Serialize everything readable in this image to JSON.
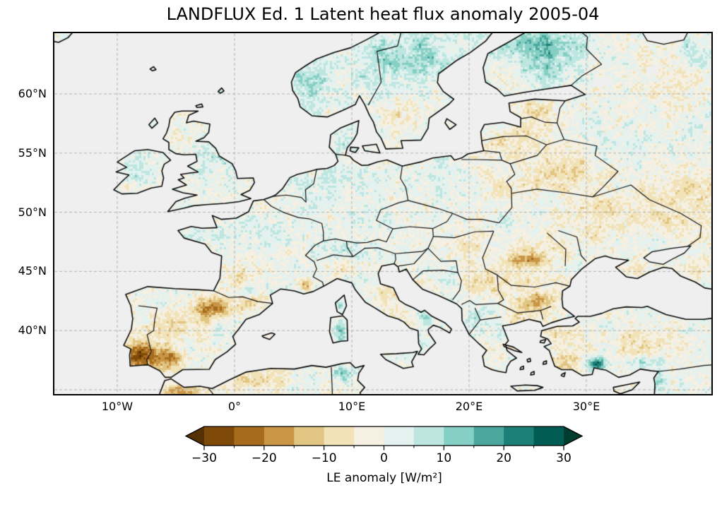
{
  "figure": {
    "title": "LANDFLUX Ed. 1 Latent heat flux anomaly 2005-04",
    "background_color": "#ffffff"
  },
  "map": {
    "ocean_color": "#efefef",
    "coastline_color": "#0a0a0a",
    "border_color": "#111111",
    "gridline_color": "#b3b3b3",
    "spine_color": "#000000"
  },
  "chart_data": {
    "type": "heatmap",
    "subtype": "geographic-anomaly-map",
    "title": "LANDFLUX Ed. 1 Latent heat flux anomaly 2005-04",
    "projection": "PlateCarree",
    "extent": {
      "lon_min": -15.4,
      "lon_max": 40.7,
      "lat_min": 34.6,
      "lat_max": 65.1
    },
    "grid": {
      "on": true,
      "style": "dashed",
      "lon_lines": [
        -10,
        0,
        10,
        20,
        30
      ],
      "lat_lines": [
        35,
        40,
        45,
        50,
        55,
        60
      ]
    },
    "xticks": [
      {
        "label": "10°W",
        "lon": -10
      },
      {
        "label": "0°",
        "lon": 0
      },
      {
        "label": "10°E",
        "lon": 10
      },
      {
        "label": "20°E",
        "lon": 20
      },
      {
        "label": "30°E",
        "lon": 30
      }
    ],
    "yticks": [
      {
        "label": "60°N",
        "lat": 60
      },
      {
        "label": "55°N",
        "lat": 55
      },
      {
        "label": "50°N",
        "lat": 50
      },
      {
        "label": "45°N",
        "lat": 45
      },
      {
        "label": "40°N",
        "lat": 40
      }
    ],
    "colorbar": {
      "label": "LE anomaly [W/m²]",
      "orientation": "horizontal",
      "extend": "both",
      "level_min": -30,
      "level_max": 30,
      "level_step": 5,
      "ticks": [
        -30,
        -20,
        -10,
        0,
        10,
        20,
        30
      ],
      "tick_labels": [
        "−30",
        "−20",
        "−10",
        "0",
        "10",
        "20",
        "30"
      ],
      "under_color": "#543005",
      "over_color": "#003c30",
      "colors": [
        "#7f4909",
        "#a76b1d",
        "#c99546",
        "#e1c582",
        "#f2e2b8",
        "#f5f0e2",
        "#e3f1ef",
        "#bce6df",
        "#85cfc4",
        "#4ca89e",
        "#1d8078",
        "#015c53"
      ]
    },
    "anomaly_centers": [
      {
        "region": "sw-iberia",
        "lon": -8.0,
        "lat": 37.9,
        "value": -26,
        "sx": 1.8,
        "sy": 1.1
      },
      {
        "region": "s-spain",
        "lon": -5.6,
        "lat": 37.6,
        "value": -16,
        "sx": 1.3,
        "sy": 0.9
      },
      {
        "region": "c-iberia",
        "lon": -5.0,
        "lat": 40.5,
        "value": -9,
        "sx": 2.2,
        "sy": 1.4
      },
      {
        "region": "ne-spain-ebro",
        "lon": -1.8,
        "lat": 41.9,
        "value": -20,
        "sx": 1.7,
        "sy": 0.9
      },
      {
        "region": "e-pyrenees",
        "lon": 1.2,
        "lat": 42.4,
        "value": -14,
        "sx": 0.9,
        "sy": 0.5
      },
      {
        "region": "provence",
        "lon": 6.1,
        "lat": 43.9,
        "value": -18,
        "sx": 0.6,
        "sy": 0.45
      },
      {
        "region": "n-morocco",
        "lon": -4.5,
        "lat": 34.8,
        "value": -14,
        "sx": 1.8,
        "sy": 0.9
      },
      {
        "region": "algeria",
        "lon": 1.5,
        "lat": 35.8,
        "value": -8,
        "sx": 2.5,
        "sy": 0.9
      },
      {
        "region": "tunisia",
        "lon": 9.3,
        "lat": 36.4,
        "value": 14,
        "sx": 0.9,
        "sy": 0.6
      },
      {
        "region": "sw-france",
        "lon": 0.3,
        "lat": 44.6,
        "value": -6,
        "sx": 1.6,
        "sy": 1.2
      },
      {
        "region": "n-france",
        "lon": 2.3,
        "lat": 48.0,
        "value": 4,
        "sx": 2.4,
        "sy": 1.6
      },
      {
        "region": "brittany",
        "lon": -3.0,
        "lat": 48.2,
        "value": 4,
        "sx": 1.0,
        "sy": 0.7
      },
      {
        "region": "britain",
        "lon": -1.8,
        "lat": 53.6,
        "value": 4,
        "sx": 2.4,
        "sy": 2.2
      },
      {
        "region": "ireland",
        "lon": -8.0,
        "lat": 53.3,
        "value": 4,
        "sx": 1.6,
        "sy": 1.3
      },
      {
        "region": "nw-germany",
        "lon": 8.0,
        "lat": 52.3,
        "value": 5,
        "sx": 1.7,
        "sy": 1.3
      },
      {
        "region": "germany",
        "lon": 10.5,
        "lat": 50.0,
        "value": 2,
        "sx": 2.2,
        "sy": 1.8
      },
      {
        "region": "alps",
        "lon": 9.5,
        "lat": 46.8,
        "value": 4,
        "sx": 2.0,
        "sy": 0.8
      },
      {
        "region": "netherlands",
        "lon": 5.5,
        "lat": 52.3,
        "value": 5,
        "sx": 1.0,
        "sy": 0.8
      },
      {
        "region": "denmark",
        "lon": 9.3,
        "lat": 55.9,
        "value": 3,
        "sx": 1.4,
        "sy": 0.9
      },
      {
        "region": "w-norway",
        "lon": 6.5,
        "lat": 61.0,
        "value": 9,
        "sx": 1.8,
        "sy": 2.2
      },
      {
        "region": "scandinavia",
        "lon": 15.0,
        "lat": 63.0,
        "value": 10,
        "sx": 4.5,
        "sy": 2.2
      },
      {
        "region": "n-finland",
        "lon": 26.0,
        "lat": 64.5,
        "value": 10,
        "sx": 4.0,
        "sy": 1.5
      },
      {
        "region": "finland",
        "lon": 26.5,
        "lat": 62.5,
        "value": 9,
        "sx": 2.5,
        "sy": 1.8
      },
      {
        "region": "s-sweden",
        "lon": 14.5,
        "lat": 58.2,
        "value": -6,
        "sx": 1.3,
        "sy": 1.2
      },
      {
        "region": "nw-russia",
        "lon": 36.0,
        "lat": 61.5,
        "value": -4,
        "sx": 4.0,
        "sy": 2.5
      },
      {
        "region": "ne-russia",
        "lon": 39.5,
        "lat": 63.5,
        "value": 5,
        "sx": 2.5,
        "sy": 1.5
      },
      {
        "region": "estonia",
        "lon": 25.8,
        "lat": 58.7,
        "value": -6,
        "sx": 1.8,
        "sy": 0.8
      },
      {
        "region": "baltics",
        "lon": 24.5,
        "lat": 56.3,
        "value": -7,
        "sx": 2.5,
        "sy": 1.3
      },
      {
        "region": "belarus",
        "lon": 28.0,
        "lat": 53.3,
        "value": -7,
        "sx": 3.0,
        "sy": 1.6
      },
      {
        "region": "e-poland",
        "lon": 22.5,
        "lat": 52.3,
        "value": -5,
        "sx": 1.8,
        "sy": 1.5
      },
      {
        "region": "w-poland",
        "lon": 16.5,
        "lat": 52.6,
        "value": 3,
        "sx": 1.6,
        "sy": 1.2
      },
      {
        "region": "ukraine",
        "lon": 31.5,
        "lat": 49.8,
        "value": -6,
        "sx": 4.0,
        "sy": 2.0
      },
      {
        "region": "s-russia",
        "lon": 38.5,
        "lat": 51.5,
        "value": -7,
        "sx": 3.5,
        "sy": 3.0
      },
      {
        "region": "hungary",
        "lon": 19.5,
        "lat": 47.0,
        "value": -6,
        "sx": 1.7,
        "sy": 1.0
      },
      {
        "region": "romania",
        "lon": 26.0,
        "lat": 46.6,
        "value": -8,
        "sx": 2.0,
        "sy": 1.3
      },
      {
        "region": "carpathians",
        "lon": 24.8,
        "lat": 45.9,
        "value": -14,
        "sx": 1.5,
        "sy": 0.55
      },
      {
        "region": "wallachia",
        "lon": 25.0,
        "lat": 44.3,
        "value": -6,
        "sx": 2.0,
        "sy": 0.8
      },
      {
        "region": "bulgaria",
        "lon": 25.6,
        "lat": 42.4,
        "value": -17,
        "sx": 1.6,
        "sy": 0.8
      },
      {
        "region": "serbia",
        "lon": 21.3,
        "lat": 44.1,
        "value": -9,
        "sx": 1.3,
        "sy": 1.1
      },
      {
        "region": "bosnia",
        "lon": 17.8,
        "lat": 44.4,
        "value": 4,
        "sx": 1.0,
        "sy": 0.7
      },
      {
        "region": "albania",
        "lon": 20.3,
        "lat": 41.3,
        "value": 8,
        "sx": 0.8,
        "sy": 0.9
      },
      {
        "region": "nw-greece",
        "lon": 21.0,
        "lat": 39.8,
        "value": 4,
        "sx": 0.7,
        "sy": 0.6
      },
      {
        "region": "n-greece",
        "lon": 24.0,
        "lat": 41.0,
        "value": -7,
        "sx": 1.5,
        "sy": 0.8
      },
      {
        "region": "puglia",
        "lon": 16.4,
        "lat": 41.1,
        "value": 9,
        "sx": 0.7,
        "sy": 0.5
      },
      {
        "region": "calabria-sicily",
        "lon": 15.0,
        "lat": 38.2,
        "value": 6,
        "sx": 1.0,
        "sy": 0.7
      },
      {
        "region": "sardinia",
        "lon": 9.0,
        "lat": 40.0,
        "value": 16,
        "sx": 0.5,
        "sy": 0.9
      },
      {
        "region": "corsica",
        "lon": 9.0,
        "lat": 42.2,
        "value": 8,
        "sx": 0.4,
        "sy": 0.6
      },
      {
        "region": "c-italy",
        "lon": 12.6,
        "lat": 43.2,
        "value": -5,
        "sx": 1.3,
        "sy": 1.1
      },
      {
        "region": "po-valley",
        "lon": 9.5,
        "lat": 45.2,
        "value": -4,
        "sx": 1.3,
        "sy": 0.6
      },
      {
        "region": "nw-anatolia",
        "lon": 27.5,
        "lat": 39.8,
        "value": -5,
        "sx": 1.2,
        "sy": 1.0
      },
      {
        "region": "c-anatolia",
        "lon": 34.5,
        "lat": 38.8,
        "value": -6,
        "sx": 2.5,
        "sy": 1.5
      },
      {
        "region": "taurus",
        "lon": 30.9,
        "lat": 37.2,
        "value": 22,
        "sx": 0.8,
        "sy": 0.5
      },
      {
        "region": "e-taurus",
        "lon": 34.8,
        "lat": 37.4,
        "value": 10,
        "sx": 1.6,
        "sy": 0.6
      },
      {
        "region": "levant",
        "lon": 36.2,
        "lat": 35.6,
        "value": 6,
        "sx": 0.8,
        "sy": 0.9
      },
      {
        "region": "sw-anatolia",
        "lon": 28.5,
        "lat": 37.3,
        "value": -9,
        "sx": 1.3,
        "sy": 0.9
      },
      {
        "region": "crimea",
        "lon": 34.2,
        "lat": 45.1,
        "value": -5,
        "sx": 1.3,
        "sy": 0.7
      },
      {
        "region": "kuban",
        "lon": 39.5,
        "lat": 45.5,
        "value": -5,
        "sx": 1.5,
        "sy": 1.0
      }
    ]
  }
}
